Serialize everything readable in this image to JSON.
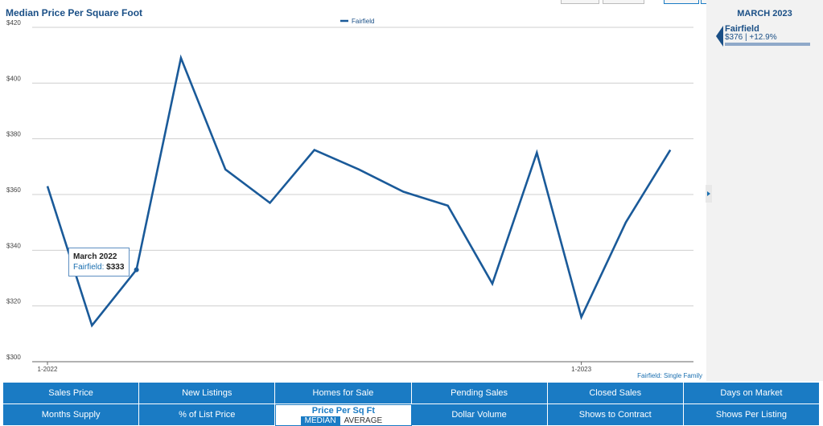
{
  "chart_data": {
    "type": "line",
    "title": "Median Price Per Square Foot",
    "x": [
      "2022-01",
      "2022-02",
      "2022-03",
      "2022-04",
      "2022-05",
      "2022-06",
      "2022-07",
      "2022-08",
      "2022-09",
      "2022-10",
      "2022-11",
      "2022-12",
      "2023-01",
      "2023-02",
      "2023-03"
    ],
    "x_tick_labels": [
      "1-2022",
      "1-2023"
    ],
    "series": [
      {
        "name": "Fairfield",
        "color": "#1a5a99",
        "values": [
          363,
          313,
          333,
          409,
          369,
          357,
          376,
          369,
          361,
          356,
          328,
          375,
          316,
          350,
          376
        ]
      }
    ],
    "ylim": [
      300,
      420
    ],
    "y_ticks": [
      "$300",
      "$320",
      "$340",
      "$360",
      "$380",
      "$400",
      "$420"
    ],
    "grid": true,
    "legend": "top-center",
    "footnote": "Fairfield: Single Family",
    "tooltip": {
      "date": "March 2022",
      "series": "Fairfield",
      "value": "$333",
      "index": 2
    }
  },
  "side_panel": {
    "date": "MARCH 2023",
    "series": "Fairfield",
    "values": "$376 | +12.9%"
  },
  "metrics": {
    "row1": [
      "Sales Price",
      "New Listings",
      "Homes for Sale",
      "Pending Sales",
      "Closed Sales",
      "Days on Market"
    ],
    "row2_left": [
      "Months Supply",
      "% of List Price"
    ],
    "active": {
      "label": "Price Per Sq Ft",
      "options": [
        "MEDIAN",
        "AVERAGE"
      ],
      "selected": "MEDIAN"
    },
    "row2_right": [
      "Dollar Volume",
      "Shows to Contract",
      "Shows Per Listing"
    ]
  },
  "colors": {
    "accent": "#1a7bc4",
    "line": "#1a5a99"
  }
}
